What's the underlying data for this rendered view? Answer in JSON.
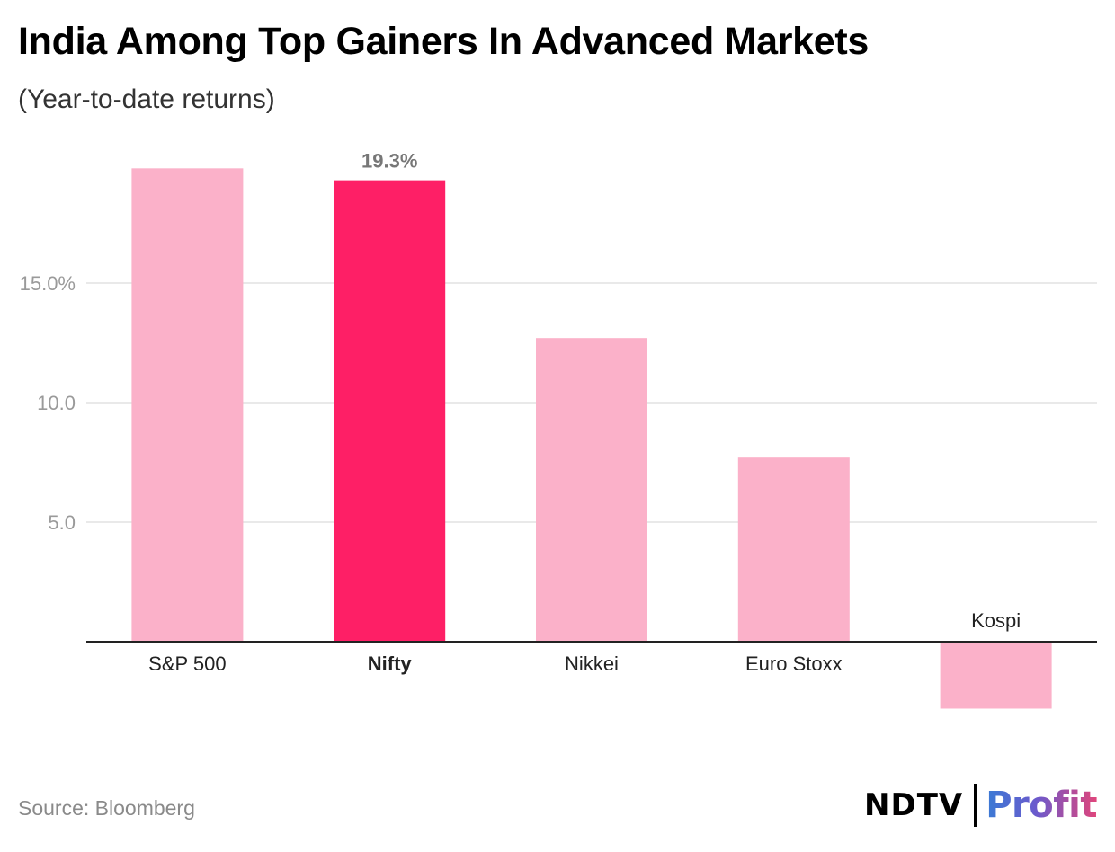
{
  "header": {
    "title": "India Among Top Gainers In Advanced Markets",
    "subtitle": "(Year-to-date returns)"
  },
  "footer": {
    "source": "Source: Bloomberg",
    "logo_left": "NDTV",
    "logo_right": "Profit"
  },
  "colors": {
    "bar": "#fbb1c9",
    "highlight": "#fe1f66",
    "grid": "#e2e2e2",
    "axis": "#222222",
    "tick_label": "#9a9a9a"
  },
  "chart_data": {
    "type": "bar",
    "title": "India Among Top Gainers In Advanced Markets",
    "subtitle": "(Year-to-date returns)",
    "xlabel": "",
    "ylabel": "",
    "categories": [
      "S&P 500",
      "Nifty",
      "Nikkei",
      "Euro Stoxx",
      "Kospi"
    ],
    "values": [
      19.8,
      19.3,
      12.7,
      7.7,
      -2.8
    ],
    "highlight_index": 1,
    "data_labels": [
      {
        "category": "Nifty",
        "text": "19.3%"
      }
    ],
    "ylim": [
      -2.8,
      20.0
    ],
    "yticks": [
      5,
      10,
      15
    ],
    "ytick_labels": [
      "5.0",
      "10.0",
      "15.0%"
    ],
    "grid": true,
    "legend": "none"
  }
}
